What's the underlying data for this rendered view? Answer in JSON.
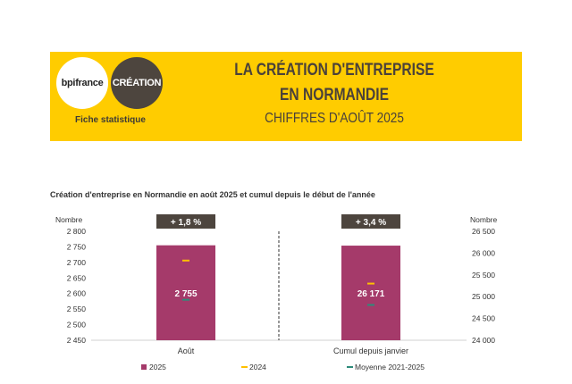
{
  "header": {
    "logo_bpi": "bpifrance",
    "logo_creation": "CRÉATION",
    "fiche": "Fiche statistique",
    "title_line1": "LA CRÉATION D'ENTREPRISE",
    "title_line2": "EN NORMANDIE",
    "subtitle": "CHIFFRES D'AOÛT 2025"
  },
  "colors": {
    "banner": "#ffcc00",
    "bar_2025": "#a53a6a",
    "marker_2024": "#ffc000",
    "marker_moyenne": "#2e8b7a",
    "badge": "#4d453e"
  },
  "chart_data": {
    "type": "bar",
    "title": "Création d'entreprise en Normandie en août 2025 et cumul depuis le début de l'année",
    "categories": [
      "Août",
      "Cumul depuis janvier"
    ],
    "left_axis": {
      "label": "Nombre",
      "range": [
        2450,
        2800
      ],
      "ticks": [
        "2 450",
        "2 500",
        "2 550",
        "2 600",
        "2 650",
        "2 700",
        "2 750",
        "2 800"
      ]
    },
    "right_axis": {
      "label": "Nombre",
      "range": [
        24000,
        26500
      ],
      "ticks": [
        "24 000",
        "24 500",
        "25 000",
        "25 500",
        "26 000",
        "26 500"
      ]
    },
    "series": [
      {
        "name": "2025",
        "values": [
          2755,
          26171
        ],
        "data_labels": [
          "2 755",
          "26 171"
        ]
      },
      {
        "name": "2024",
        "values": [
          2706,
          25300
        ]
      },
      {
        "name": "Moyenne 2021-2025",
        "values": [
          2580,
          24810
        ]
      }
    ],
    "badges": [
      "+ 1,8 %",
      "+ 3,4 %"
    ],
    "grid": false,
    "legend": "bottom"
  }
}
